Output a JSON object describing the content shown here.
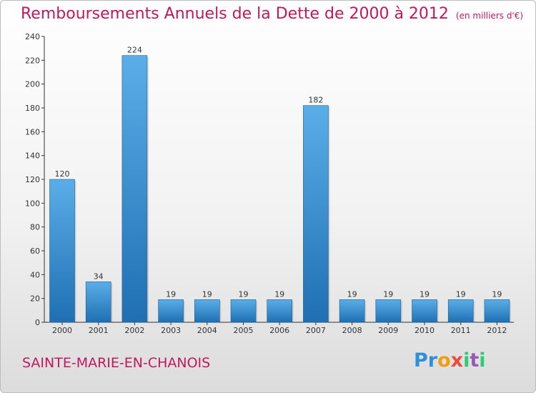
{
  "header": {
    "title": "Remboursements Annuels de la Dette de 2000 à 2012",
    "unit": "(en milliers d'€)"
  },
  "footer": {
    "commune": "SAINTE-MARIE-EN-CHANOIS",
    "logo": "Proxiti"
  },
  "colors": {
    "title": "#c2185b",
    "bar_light": "#5aaee8",
    "bar_dark": "#1f6fb2"
  },
  "chart_data": {
    "type": "bar",
    "title": "Remboursements Annuels de la Dette de 2000 à 2012",
    "categories": [
      "2000",
      "2001",
      "2002",
      "2003",
      "2004",
      "2005",
      "2006",
      "2007",
      "2008",
      "2009",
      "2010",
      "2011",
      "2012"
    ],
    "values": [
      120,
      34,
      224,
      19,
      19,
      19,
      19,
      182,
      19,
      19,
      19,
      19,
      19
    ],
    "ylim": [
      0,
      240
    ],
    "yticks": [
      0,
      20,
      40,
      60,
      80,
      100,
      120,
      140,
      160,
      180,
      200,
      220,
      240
    ],
    "grid": false,
    "data_labels": true
  }
}
